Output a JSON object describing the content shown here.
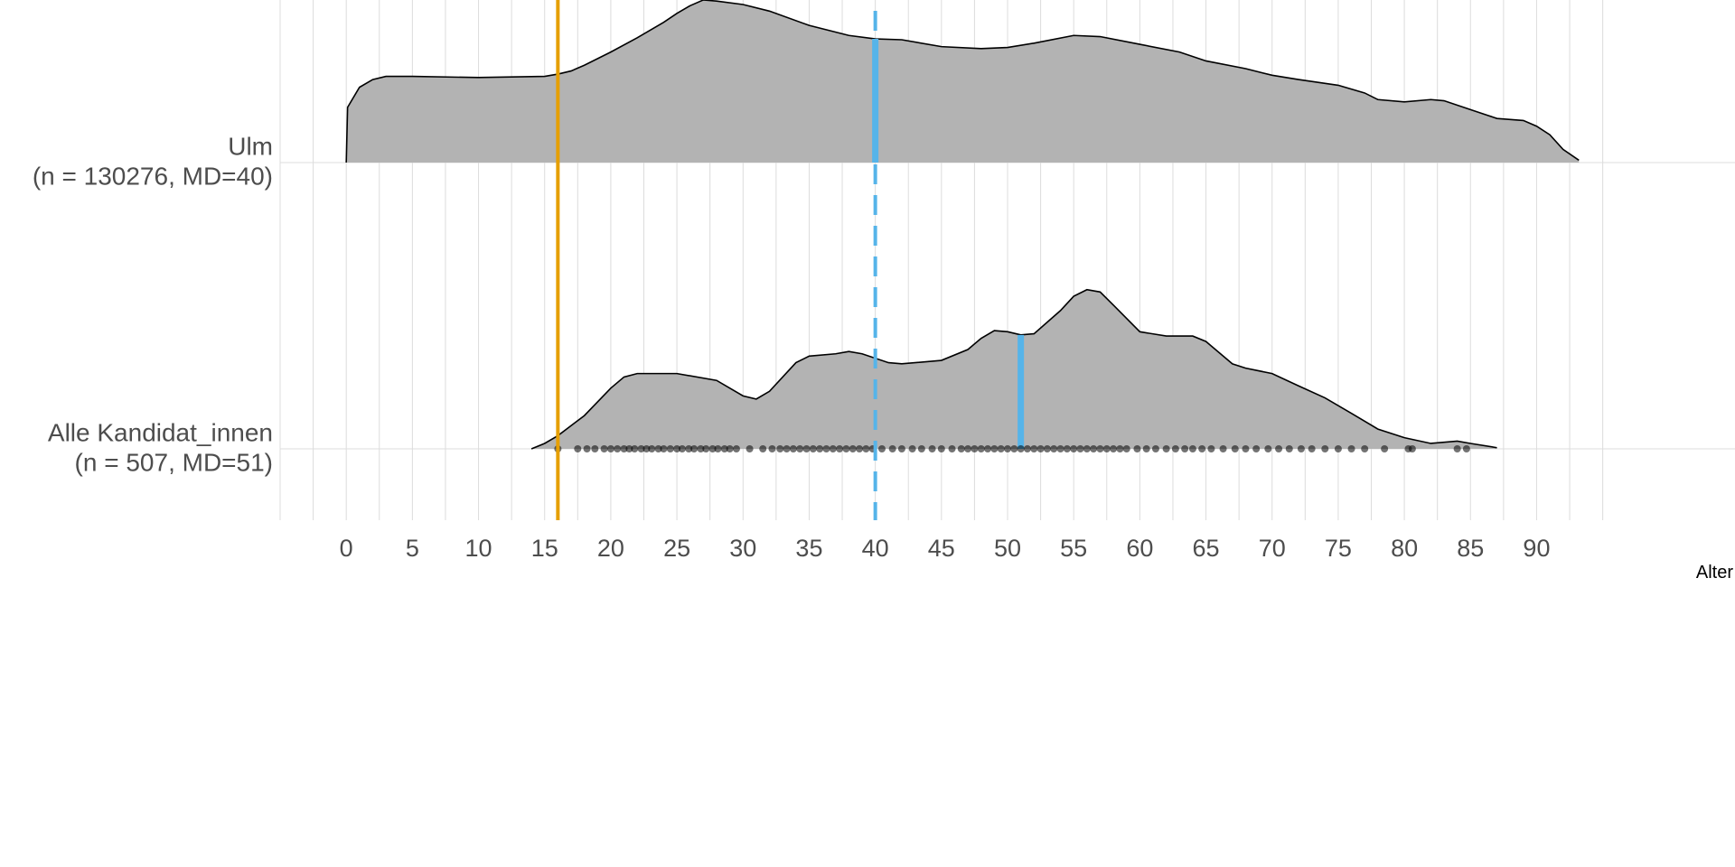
{
  "chart_data": {
    "type": "ridgeline",
    "x_label": "Alter",
    "xlim": [
      -5,
      105
    ],
    "xticks": [
      0,
      5,
      10,
      15,
      20,
      25,
      30,
      35,
      40,
      45,
      50,
      55,
      60,
      65,
      70,
      75,
      80,
      85,
      90
    ],
    "xgrid": [
      -5,
      -2.5,
      0,
      2.5,
      5,
      7.5,
      10,
      12.5,
      15,
      17.5,
      20,
      22.5,
      25,
      27.5,
      30,
      32.5,
      35,
      37.5,
      40,
      42.5,
      45,
      47.5,
      50,
      52.5,
      55,
      57.5,
      60,
      62.5,
      65,
      67.5,
      70,
      72.5,
      75,
      77.5,
      80,
      82.5,
      85,
      87.5,
      90,
      92.5,
      95
    ],
    "grid": true,
    "vlines": [
      {
        "value": 16,
        "color": "#E69F00",
        "dashed": false
      },
      {
        "value": 40,
        "color": "#56B4E9",
        "dashed": true
      }
    ],
    "median_color": "#56B4E9",
    "point_color": "#000000",
    "series": [
      {
        "name": [
          "Ulm",
          "(n = 130276, MD=40)"
        ],
        "color": "#b3b3b3",
        "median": 40,
        "x": [
          0,
          0.1,
          1,
          2,
          3,
          5,
          10,
          15,
          16,
          17,
          18,
          20,
          22,
          24,
          25,
          26,
          27,
          28,
          30,
          32,
          35,
          38,
          40,
          42,
          45,
          48,
          50,
          52,
          55,
          57,
          60,
          63,
          65,
          68,
          70,
          72,
          75,
          77,
          78,
          80,
          82,
          83,
          85,
          87,
          89,
          90,
          91,
          92,
          93.2
        ],
        "values": [
          0,
          19.3,
          26.3,
          29,
          30.1,
          30.1,
          29.7,
          30.1,
          30.9,
          32,
          34,
          38.6,
          43.6,
          49,
          52.1,
          54.8,
          56.8,
          56.4,
          55.2,
          52.9,
          47.9,
          44.4,
          43.2,
          42.9,
          40.5,
          39.8,
          40.2,
          41.7,
          44.4,
          44,
          41.3,
          38.6,
          35.5,
          32.8,
          30.5,
          29,
          27,
          24.3,
          22,
          21.2,
          22,
          21.6,
          18.5,
          15.4,
          14.7,
          12.7,
          9.7,
          4.6,
          0.8
        ]
      },
      {
        "name": [
          "Alle Kandidat_innen",
          "(n = 507, MD=51)"
        ],
        "color": "#b3b3b3",
        "median": 51,
        "x": [
          14,
          15,
          16,
          18,
          20,
          21,
          22,
          25,
          28,
          30,
          31,
          32,
          34,
          35,
          37,
          38,
          39,
          41,
          42,
          45,
          47,
          48,
          49,
          50,
          51,
          52,
          54,
          55,
          56,
          57,
          58,
          60,
          62,
          64,
          65,
          67,
          68,
          70,
          72,
          74,
          76,
          78,
          80,
          82,
          84,
          85,
          87
        ],
        "values": [
          0,
          1.9,
          4.6,
          11.6,
          21.2,
          25.1,
          26.3,
          26.3,
          23.9,
          18.5,
          17.4,
          20.1,
          30.1,
          32.4,
          33.2,
          34,
          33.2,
          30.1,
          29.7,
          30.9,
          34.7,
          38.6,
          41.3,
          40.9,
          39.8,
          40.2,
          48.3,
          53.3,
          55.6,
          54.8,
          50.2,
          40.9,
          39.4,
          39.4,
          37.5,
          29.7,
          28.2,
          26.3,
          22,
          17.8,
          12.4,
          6.9,
          3.9,
          1.9,
          2.7,
          1.9,
          0.4
        ],
        "points": [
          16,
          17.5,
          18.2,
          18.8,
          19.5,
          20,
          20.5,
          21,
          21.4,
          21.8,
          22.3,
          22.7,
          23.1,
          23.6,
          24,
          24.5,
          25,
          25.4,
          25.9,
          26.3,
          26.8,
          27.2,
          27.7,
          28.1,
          28.6,
          29,
          29.5,
          30.5,
          31.5,
          32.2,
          32.8,
          33.3,
          33.8,
          34.3,
          34.8,
          35.3,
          35.8,
          36.3,
          36.8,
          37.3,
          37.8,
          38.3,
          38.8,
          39.3,
          39.8,
          40.5,
          41.3,
          42,
          42.8,
          43.5,
          44.3,
          45,
          45.8,
          46.5,
          47,
          47.5,
          48,
          48.5,
          49,
          49.5,
          50,
          50.5,
          51,
          51.5,
          52,
          52.5,
          53,
          53.5,
          54,
          54.5,
          55,
          55.5,
          56,
          56.5,
          57,
          57.5,
          58,
          58.5,
          59,
          59.8,
          60.5,
          61.2,
          62,
          62.7,
          63.4,
          64,
          64.7,
          65.4,
          66.3,
          67.2,
          68,
          68.8,
          69.7,
          70.5,
          71.3,
          72.2,
          73,
          74,
          75,
          76,
          77,
          78.5,
          80.3,
          80.6,
          84,
          84.7
        ]
      }
    ]
  }
}
